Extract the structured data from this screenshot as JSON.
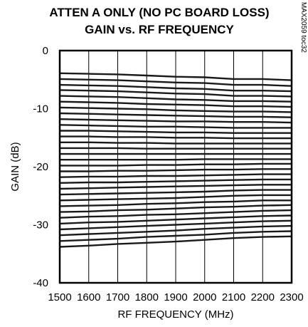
{
  "chart_data": {
    "type": "line",
    "title_lines": [
      "ATTEN A ONLY (NO PC BOARD LOSS)",
      "GAIN vs. RF FREQUENCY"
    ],
    "xlabel": "RF FREQUENCY (MHz)",
    "ylabel": "GAIN (dB)",
    "x_ticks": [
      "1500",
      "1600",
      "1700",
      "1800",
      "1900",
      "2000",
      "2100",
      "2200",
      "2300"
    ],
    "y_ticks": [
      "0",
      "-10",
      "-20",
      "-30",
      "-40"
    ],
    "xlim": [
      1500,
      2300
    ],
    "ylim": [
      -40,
      0
    ],
    "grid_x": true,
    "grid_y": false,
    "annotation": "MAX2059 toc32",
    "x": [
      1500,
      1600,
      1700,
      1800,
      1900,
      2000,
      2100,
      2200,
      2300
    ],
    "series": [
      {
        "values": [
          -3.9,
          -4.0,
          -4.1,
          -4.3,
          -4.5,
          -4.6,
          -4.9,
          -4.9,
          -5.1
        ]
      },
      {
        "values": [
          -4.9,
          -5.0,
          -5.1,
          -5.3,
          -5.5,
          -5.6,
          -5.9,
          -5.9,
          -6.1
        ]
      },
      {
        "values": [
          -5.9,
          -6.0,
          -6.1,
          -6.3,
          -6.5,
          -6.6,
          -6.9,
          -6.9,
          -7.0
        ]
      },
      {
        "values": [
          -6.8,
          -6.9,
          -7.0,
          -7.2,
          -7.4,
          -7.5,
          -7.8,
          -7.8,
          -7.9
        ]
      },
      {
        "values": [
          -7.8,
          -7.9,
          -8.0,
          -8.2,
          -8.4,
          -8.5,
          -8.7,
          -8.7,
          -8.8
        ]
      },
      {
        "values": [
          -8.8,
          -8.9,
          -9.0,
          -9.2,
          -9.3,
          -9.4,
          -9.6,
          -9.6,
          -9.7
        ]
      },
      {
        "values": [
          -9.8,
          -9.9,
          -10.0,
          -10.1,
          -10.3,
          -10.4,
          -10.5,
          -10.5,
          -10.6
        ]
      },
      {
        "values": [
          -10.8,
          -10.9,
          -11.0,
          -11.1,
          -11.2,
          -11.3,
          -11.4,
          -11.4,
          -11.5
        ]
      },
      {
        "values": [
          -11.8,
          -11.9,
          -12.0,
          -12.1,
          -12.2,
          -12.2,
          -12.3,
          -12.3,
          -12.4
        ]
      },
      {
        "values": [
          -12.8,
          -12.9,
          -13.0,
          -13.1,
          -13.1,
          -13.2,
          -13.3,
          -13.3,
          -13.3
        ]
      },
      {
        "values": [
          -13.8,
          -13.8,
          -13.9,
          -14.0,
          -14.1,
          -14.1,
          -14.2,
          -14.2,
          -14.2
        ]
      },
      {
        "values": [
          -14.8,
          -14.8,
          -14.9,
          -14.9,
          -15.0,
          -15.0,
          -15.1,
          -15.1,
          -15.1
        ]
      },
      {
        "values": [
          -15.8,
          -15.8,
          -15.9,
          -15.9,
          -16.0,
          -16.0,
          -16.0,
          -16.0,
          -16.0
        ]
      },
      {
        "values": [
          -16.8,
          -16.8,
          -16.8,
          -16.9,
          -16.9,
          -16.9,
          -16.9,
          -16.9,
          -16.9
        ]
      },
      {
        "values": [
          -17.8,
          -17.8,
          -17.8,
          -17.8,
          -17.8,
          -17.8,
          -17.8,
          -17.8,
          -17.8
        ]
      },
      {
        "values": [
          -18.8,
          -18.8,
          -18.8,
          -18.8,
          -18.8,
          -18.7,
          -18.7,
          -18.7,
          -18.7
        ]
      },
      {
        "values": [
          -19.8,
          -19.8,
          -19.8,
          -19.7,
          -19.7,
          -19.6,
          -19.6,
          -19.5,
          -19.5
        ]
      },
      {
        "values": [
          -20.8,
          -20.8,
          -20.7,
          -20.7,
          -20.6,
          -20.5,
          -20.5,
          -20.4,
          -20.4
        ]
      },
      {
        "values": [
          -21.8,
          -21.7,
          -21.7,
          -21.6,
          -21.6,
          -21.5,
          -21.4,
          -21.3,
          -21.3
        ]
      },
      {
        "values": [
          -22.8,
          -22.7,
          -22.7,
          -22.6,
          -22.5,
          -22.4,
          -22.3,
          -22.2,
          -22.2
        ]
      },
      {
        "values": [
          -23.8,
          -23.7,
          -23.6,
          -23.5,
          -23.4,
          -23.3,
          -23.2,
          -23.1,
          -23.1
        ]
      },
      {
        "values": [
          -24.8,
          -24.7,
          -24.6,
          -24.5,
          -24.4,
          -24.3,
          -24.1,
          -24.0,
          -24.0
        ]
      },
      {
        "values": [
          -25.8,
          -25.7,
          -25.6,
          -25.5,
          -25.4,
          -25.2,
          -25.0,
          -24.9,
          -24.9
        ]
      },
      {
        "values": [
          -26.8,
          -26.7,
          -26.6,
          -26.4,
          -26.3,
          -26.1,
          -26.0,
          -25.8,
          -25.8
        ]
      },
      {
        "values": [
          -27.8,
          -27.7,
          -27.5,
          -27.4,
          -27.2,
          -27.0,
          -26.9,
          -26.7,
          -26.6
        ]
      },
      {
        "values": [
          -28.8,
          -28.6,
          -28.5,
          -28.3,
          -28.2,
          -28.0,
          -27.8,
          -27.6,
          -27.5
        ]
      },
      {
        "values": [
          -29.8,
          -29.6,
          -29.5,
          -29.3,
          -29.1,
          -28.9,
          -28.7,
          -28.5,
          -28.4
        ]
      },
      {
        "values": [
          -30.8,
          -30.6,
          -30.4,
          -30.2,
          -30.0,
          -29.8,
          -29.6,
          -29.4,
          -29.3
        ]
      },
      {
        "values": [
          -31.8,
          -31.6,
          -31.4,
          -31.2,
          -31.0,
          -30.7,
          -30.5,
          -30.3,
          -30.2
        ]
      },
      {
        "values": [
          -32.8,
          -32.6,
          -32.4,
          -32.1,
          -31.9,
          -31.7,
          -31.4,
          -31.2,
          -31.1
        ]
      },
      {
        "values": [
          -33.8,
          -33.6,
          -33.3,
          -33.1,
          -32.9,
          -32.6,
          -32.3,
          -32.1,
          -32.0
        ]
      }
    ]
  }
}
